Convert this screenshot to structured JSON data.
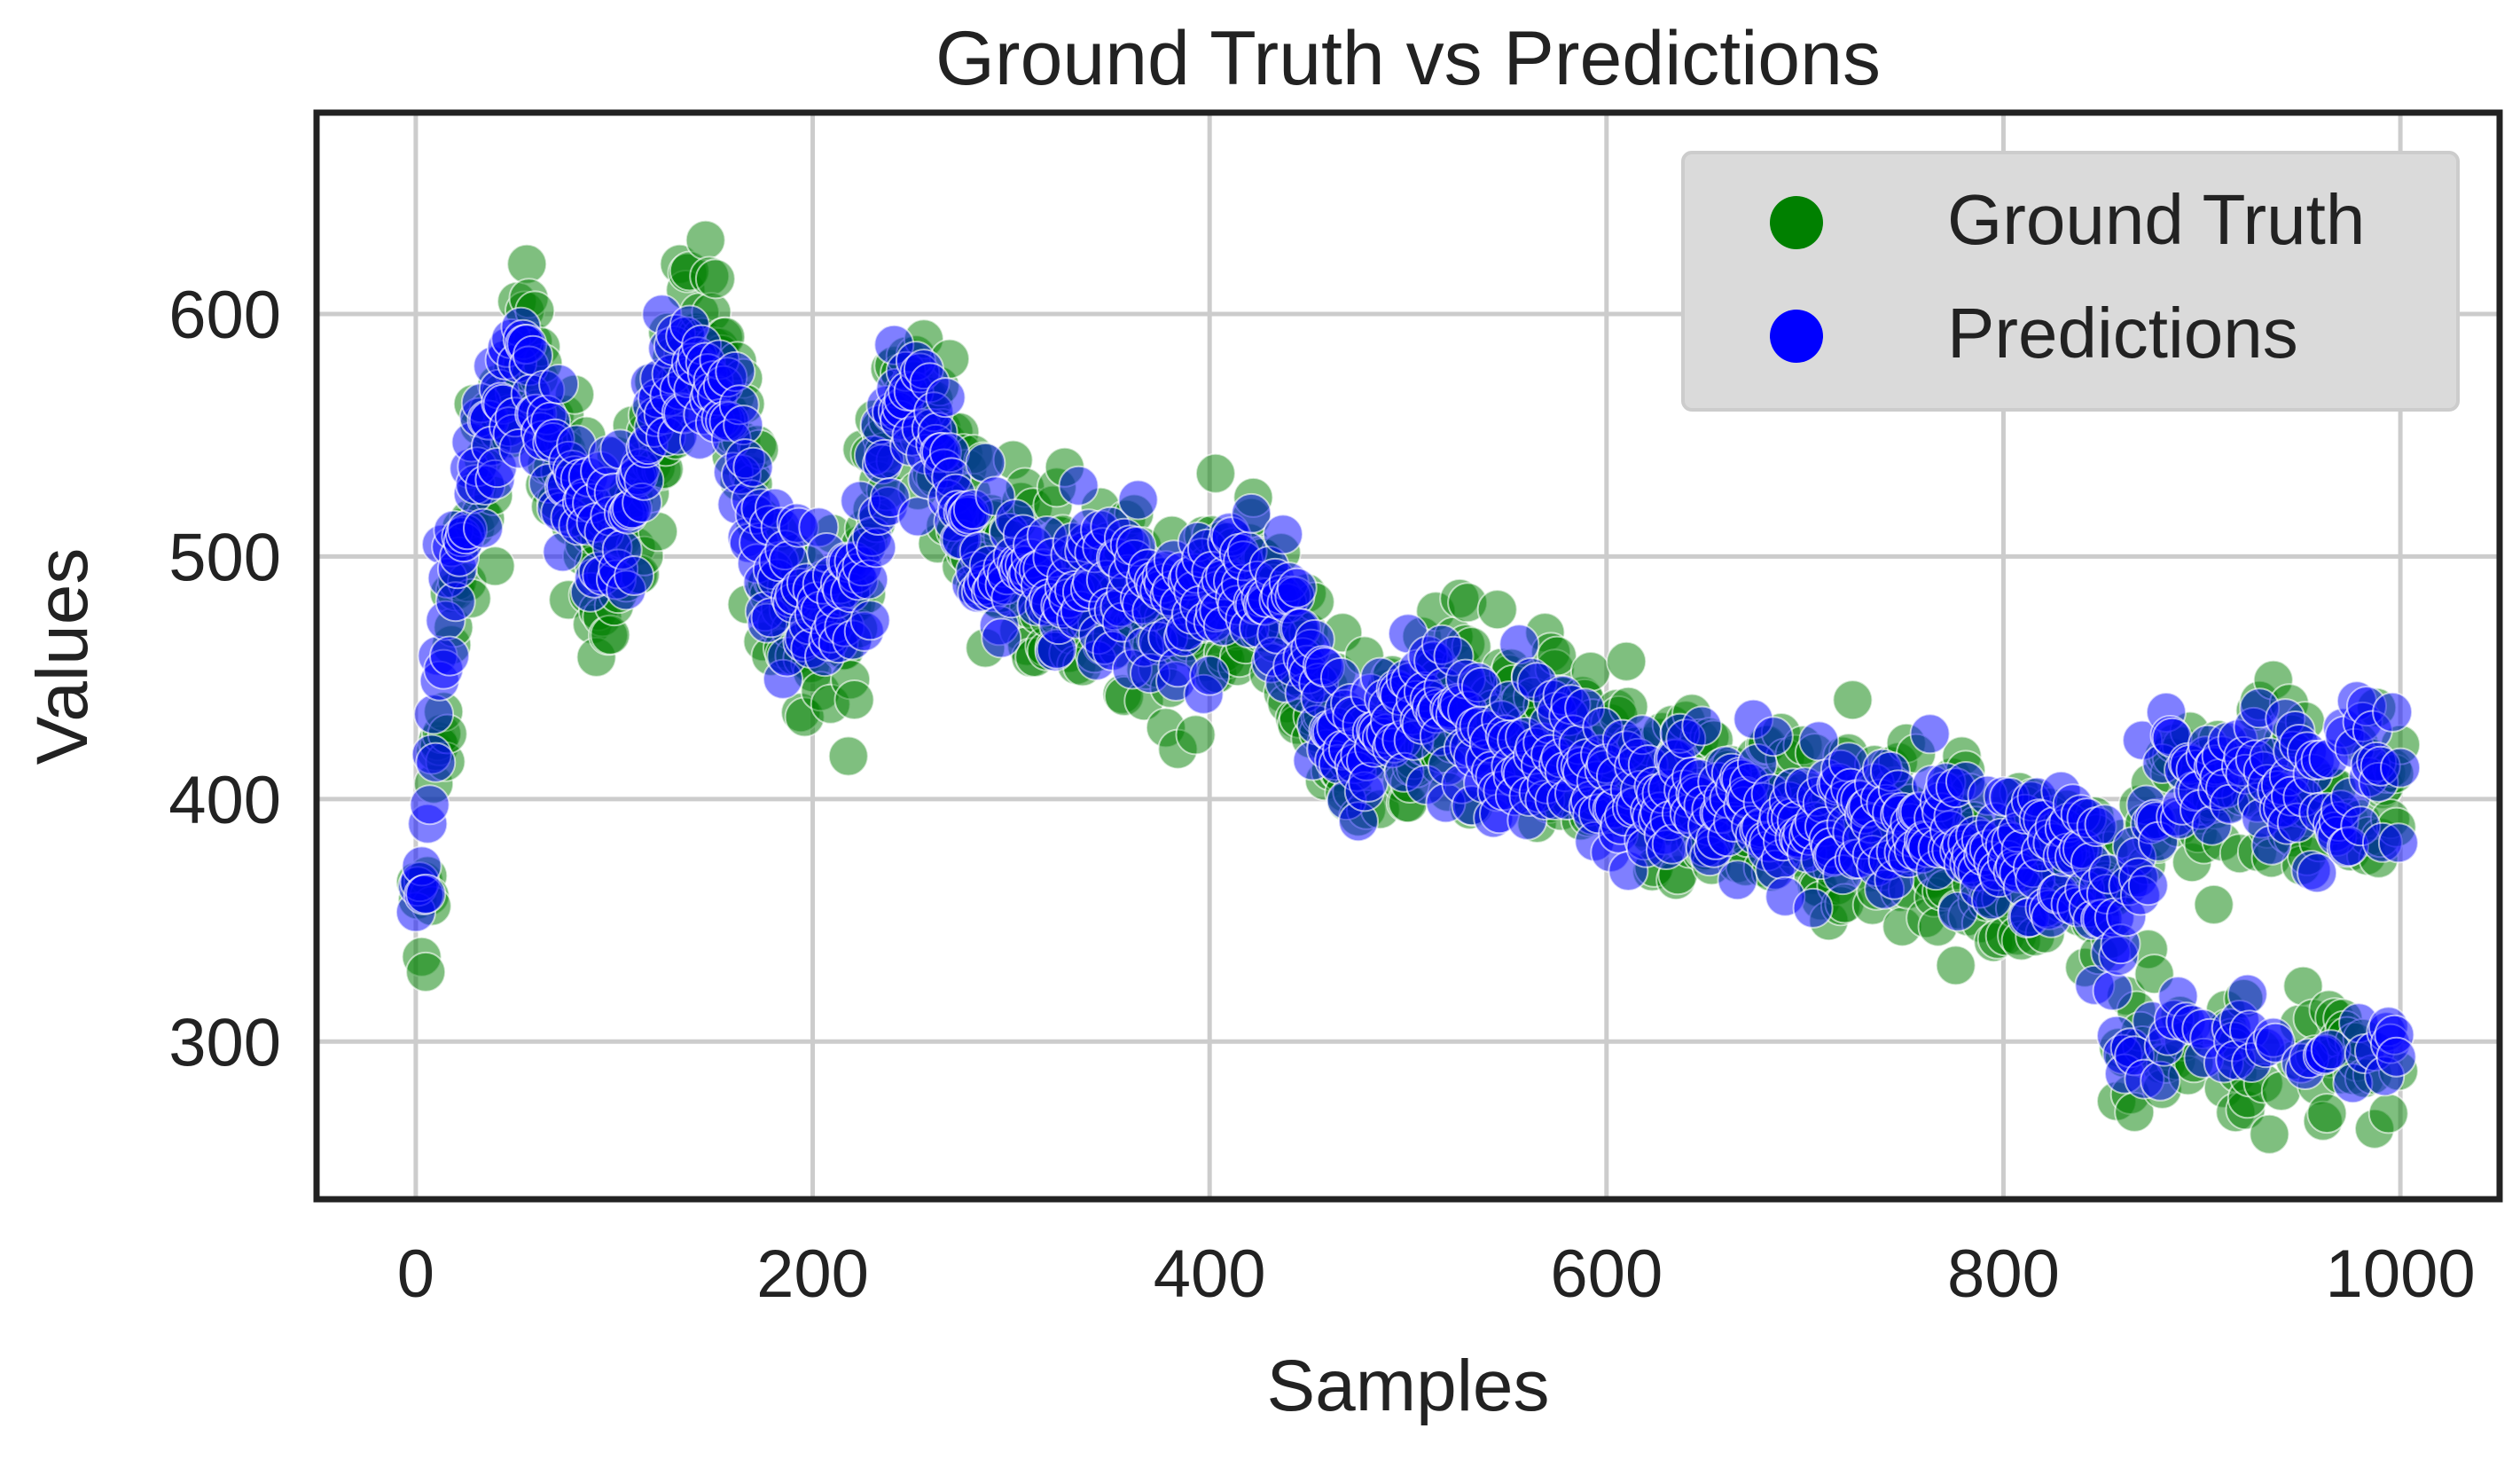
{
  "chart_data": {
    "type": "scatter",
    "title": "Ground Truth vs Predictions",
    "xlabel": "Samples",
    "ylabel": "Values",
    "xlim": [
      -50,
      1050
    ],
    "ylim": [
      235,
      683
    ],
    "x_ticks": [
      0,
      200,
      400,
      600,
      800,
      1000
    ],
    "x_tick_labels": [
      "0",
      "200",
      "400",
      "600",
      "800",
      "1000"
    ],
    "y_ticks": [
      300,
      400,
      500,
      600
    ],
    "y_tick_labels": [
      "300",
      "400",
      "500",
      "600"
    ],
    "grid": true,
    "legend_position": "top-right",
    "marker_alpha": 0.5,
    "series": [
      {
        "name": "Ground Truth",
        "color": "#008000",
        "trend": [
          [
            0,
            345
          ],
          [
            5,
            340
          ],
          [
            12,
            430
          ],
          [
            20,
            480
          ],
          [
            35,
            540
          ],
          [
            45,
            560
          ],
          [
            55,
            590
          ],
          [
            70,
            540
          ],
          [
            90,
            500
          ],
          [
            110,
            510
          ],
          [
            125,
            560
          ],
          [
            140,
            600
          ],
          [
            150,
            580
          ],
          [
            160,
            560
          ],
          [
            175,
            500
          ],
          [
            190,
            480
          ],
          [
            210,
            475
          ],
          [
            220,
            470
          ],
          [
            240,
            565
          ],
          [
            260,
            560
          ],
          [
            280,
            510
          ],
          [
            300,
            500
          ],
          [
            340,
            480
          ],
          [
            380,
            470
          ],
          [
            420,
            490
          ],
          [
            440,
            470
          ],
          [
            460,
            420
          ],
          [
            480,
            425
          ],
          [
            500,
            430
          ],
          [
            520,
            440
          ],
          [
            560,
            430
          ],
          [
            600,
            410
          ],
          [
            640,
            395
          ],
          [
            680,
            390
          ],
          [
            720,
            390
          ],
          [
            760,
            385
          ],
          [
            800,
            370
          ],
          [
            840,
            375
          ],
          [
            860,
            340
          ],
          [
            880,
            400
          ],
          [
            920,
            405
          ],
          [
            960,
            400
          ],
          [
            1000,
            405
          ]
        ],
        "spread": 34,
        "low_cluster": {
          "x_range": [
            855,
            1000
          ],
          "y": 295,
          "spread": 22
        }
      },
      {
        "name": "Predictions",
        "color": "#0000ff",
        "trend": [
          [
            0,
            375
          ],
          [
            5,
            372
          ],
          [
            12,
            465
          ],
          [
            20,
            500
          ],
          [
            35,
            545
          ],
          [
            45,
            560
          ],
          [
            55,
            580
          ],
          [
            70,
            540
          ],
          [
            90,
            510
          ],
          [
            110,
            520
          ],
          [
            125,
            565
          ],
          [
            140,
            580
          ],
          [
            150,
            570
          ],
          [
            160,
            555
          ],
          [
            175,
            500
          ],
          [
            190,
            485
          ],
          [
            210,
            480
          ],
          [
            220,
            475
          ],
          [
            240,
            560
          ],
          [
            260,
            555
          ],
          [
            280,
            510
          ],
          [
            300,
            495
          ],
          [
            340,
            485
          ],
          [
            380,
            480
          ],
          [
            420,
            495
          ],
          [
            440,
            470
          ],
          [
            460,
            430
          ],
          [
            480,
            425
          ],
          [
            500,
            435
          ],
          [
            520,
            435
          ],
          [
            560,
            425
          ],
          [
            600,
            410
          ],
          [
            640,
            400
          ],
          [
            680,
            395
          ],
          [
            720,
            390
          ],
          [
            760,
            385
          ],
          [
            800,
            375
          ],
          [
            840,
            370
          ],
          [
            860,
            350
          ],
          [
            880,
            405
          ],
          [
            920,
            410
          ],
          [
            960,
            405
          ],
          [
            1000,
            410
          ]
        ],
        "spread": 26,
        "low_cluster": {
          "x_range": [
            855,
            1000
          ],
          "y": 300,
          "spread": 14
        }
      }
    ]
  }
}
